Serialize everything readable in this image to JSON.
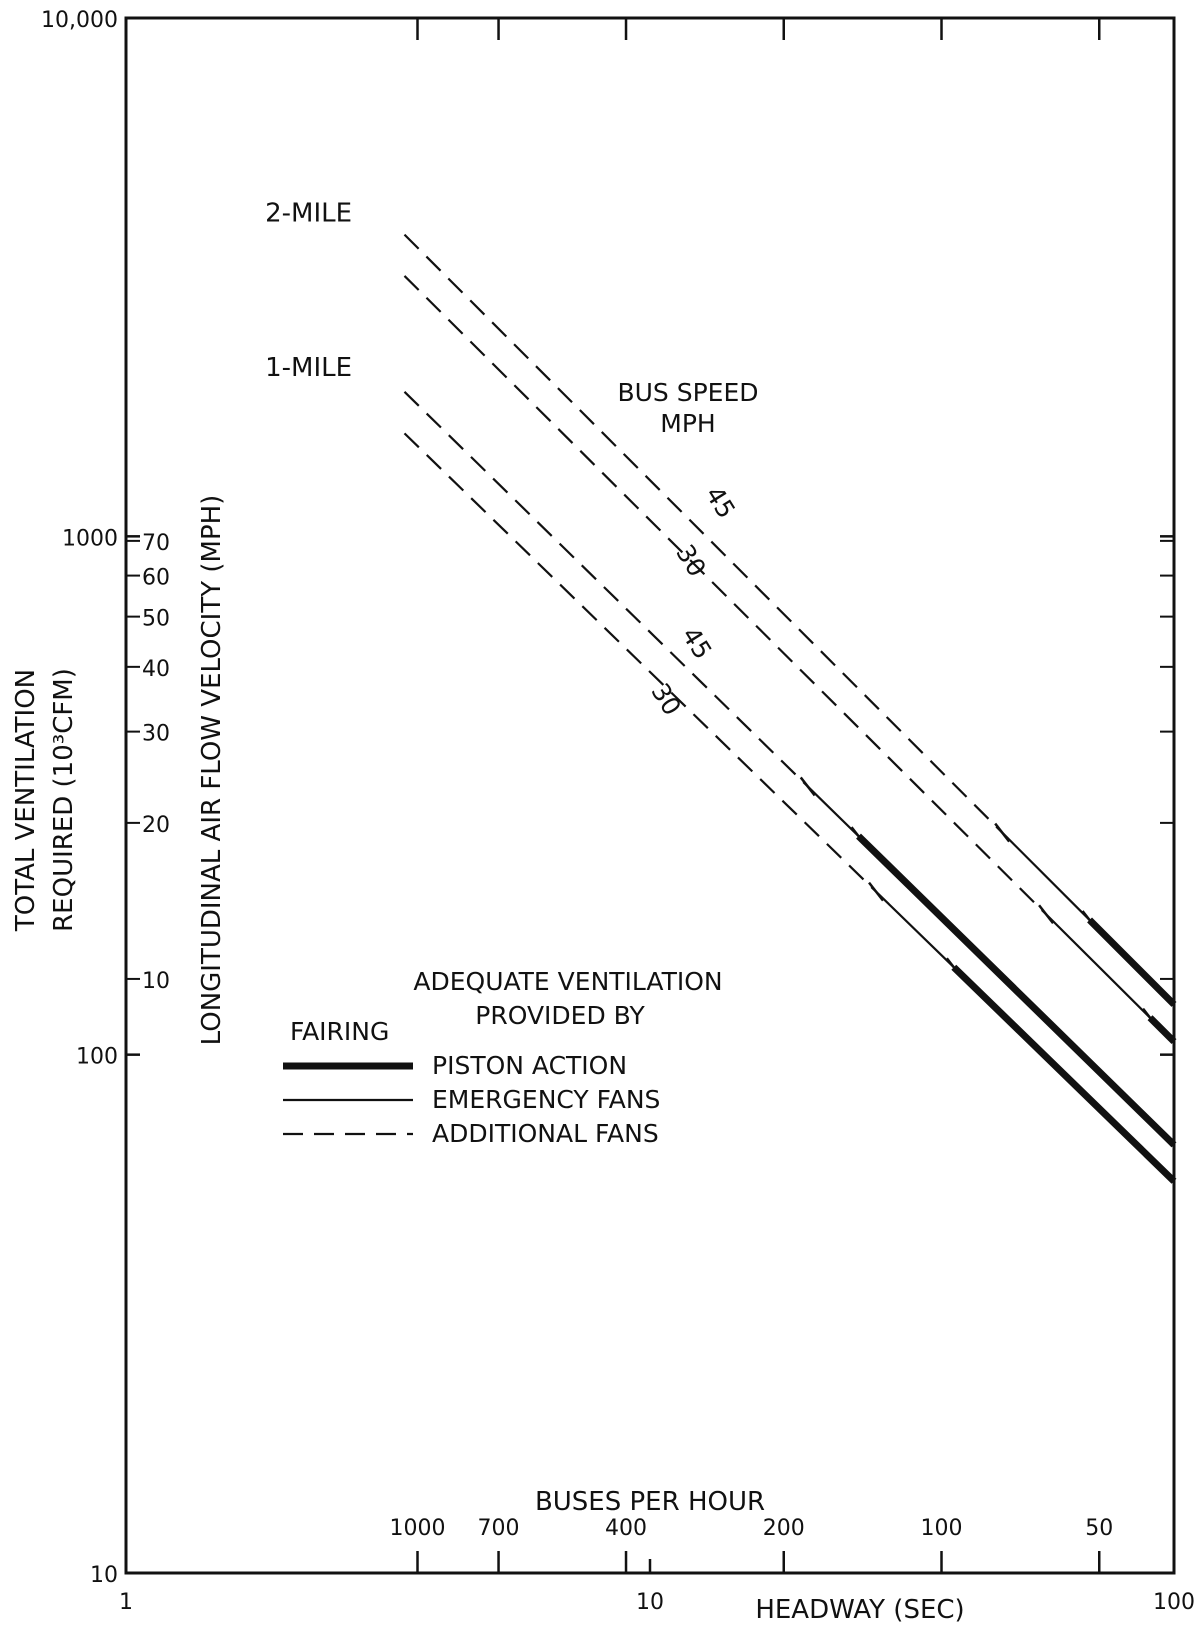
{
  "chart_data": {
    "type": "line",
    "x_scale": "log",
    "y_scale": "log",
    "xlim": [
      1,
      100
    ],
    "ylim": [
      10,
      10000
    ],
    "xlabel": "HEADWAY (SEC)",
    "x_ticks": [
      "1",
      "10",
      "100"
    ],
    "ylabel_line1": "TOTAL VENTILATION",
    "ylabel_line2": "REQUIRED (10³CFM)",
    "y_ticks": [
      "10",
      "100",
      "1000",
      "10,000"
    ],
    "y2_label": "LONGITUDINAL AIR FLOW VELOCITY (MPH)",
    "y2_ticks": [
      {
        "label": "10",
        "cfm": 140
      },
      {
        "label": "20",
        "cfm": 280
      },
      {
        "label": "30",
        "cfm": 420
      },
      {
        "label": "40",
        "cfm": 560
      },
      {
        "label": "50",
        "cfm": 700
      },
      {
        "label": "60",
        "cfm": 840
      },
      {
        "label": "70",
        "cfm": 980
      }
    ],
    "top_axis_label": "BUSES PER HOUR",
    "top_ticks": [
      {
        "label": "1000",
        "headway": 3.6
      },
      {
        "label": "700",
        "headway": 5.14
      },
      {
        "label": "400",
        "headway": 9
      },
      {
        "label": "200",
        "headway": 18
      },
      {
        "label": "100",
        "headway": 36
      },
      {
        "label": "50",
        "headway": 72
      }
    ],
    "group_labels": [
      {
        "text": "2-MILE",
        "x": 2.7,
        "y": 4050
      },
      {
        "text": "1-MILE",
        "x": 2.7,
        "y": 2040
      }
    ],
    "speed_header_line1": "BUS SPEED",
    "speed_header_line2": "MPH",
    "series": [
      {
        "tunnel": "2-MILE",
        "speed": "45",
        "x": [
          3.4,
          47,
          69,
          100
        ],
        "y": [
          3820,
          266,
          182,
          125
        ],
        "segments": [
          {
            "from": 3.4,
            "to": 47,
            "type": "dashed"
          },
          {
            "from": 47,
            "to": 69,
            "type": "solid"
          },
          {
            "from": 69,
            "to": 100,
            "type": "thick"
          }
        ]
      },
      {
        "tunnel": "2-MILE",
        "speed": "30",
        "x": [
          3.4,
          57,
          100
        ],
        "y": [
          3180,
          190,
          106
        ],
        "segments": [
          {
            "from": 3.4,
            "to": 57,
            "type": "dashed"
          },
          {
            "from": 57,
            "to": 90,
            "type": "solid"
          },
          {
            "from": 90,
            "to": 100,
            "type": "thick"
          }
        ]
      },
      {
        "tunnel": "1-MILE",
        "speed": "45",
        "x": [
          3.4,
          20,
          25,
          100
        ],
        "y": [
          1900,
          322,
          264,
          67
        ],
        "segments": [
          {
            "from": 3.4,
            "to": 20,
            "type": "dashed"
          },
          {
            "from": 20,
            "to": 25,
            "type": "solid"
          },
          {
            "from": 25,
            "to": 100,
            "type": "thick"
          }
        ]
      },
      {
        "tunnel": "1-MILE",
        "speed": "30",
        "x": [
          3.4,
          27,
          38,
          100
        ],
        "y": [
          1580,
          202,
          142,
          57
        ],
        "segments": [
          {
            "from": 3.4,
            "to": 27,
            "type": "dashed"
          },
          {
            "from": 27,
            "to": 38,
            "type": "solid"
          },
          {
            "from": 38,
            "to": 100,
            "type": "thick"
          }
        ]
      }
    ],
    "series_labels": [
      {
        "text": "45",
        "x": 13.2,
        "y": 1140
      },
      {
        "text": "30",
        "x": 11.6,
        "y": 880
      },
      {
        "text": "45",
        "x": 11.9,
        "y": 610
      },
      {
        "text": "30",
        "x": 10.4,
        "y": 475
      }
    ],
    "legend": {
      "title_line1": "ADEQUATE VENTILATION",
      "title_line2": "PROVIDED BY",
      "heading": "FAIRING",
      "items": [
        {
          "label": "PISTON ACTION",
          "style": "thick"
        },
        {
          "label": "EMERGENCY FANS",
          "style": "solid"
        },
        {
          "label": "ADDITIONAL FANS",
          "style": "dashed"
        }
      ]
    },
    "colors": {
      "ink": "#111111",
      "background": "#ffffff"
    }
  }
}
